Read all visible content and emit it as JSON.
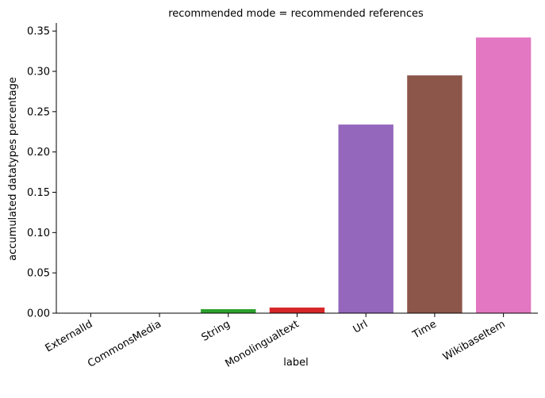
{
  "chart_data": {
    "type": "bar",
    "title": "recommended mode = recommended references",
    "xlabel": "label",
    "ylabel": "accumulated datatypes percentage",
    "categories": [
      "ExternalId",
      "CommonsMedia",
      "String",
      "Monolingualtext",
      "Url",
      "Time",
      "WikibaseItem"
    ],
    "values": [
      0.0,
      0.0,
      0.005,
      0.007,
      0.234,
      0.295,
      0.342
    ],
    "colors": [
      "#1f77b4",
      "#ff7f0e",
      "#2ca02c",
      "#d62728",
      "#9467bd",
      "#8c564b",
      "#e377c2"
    ],
    "ylim": [
      0,
      0.36
    ],
    "yticks": [
      0.0,
      0.05,
      0.1,
      0.15,
      0.2,
      0.25,
      0.3,
      0.35
    ],
    "ytick_labels": [
      "0.00",
      "0.05",
      "0.10",
      "0.15",
      "0.20",
      "0.25",
      "0.30",
      "0.35"
    ],
    "grid": false,
    "legend": "none"
  }
}
